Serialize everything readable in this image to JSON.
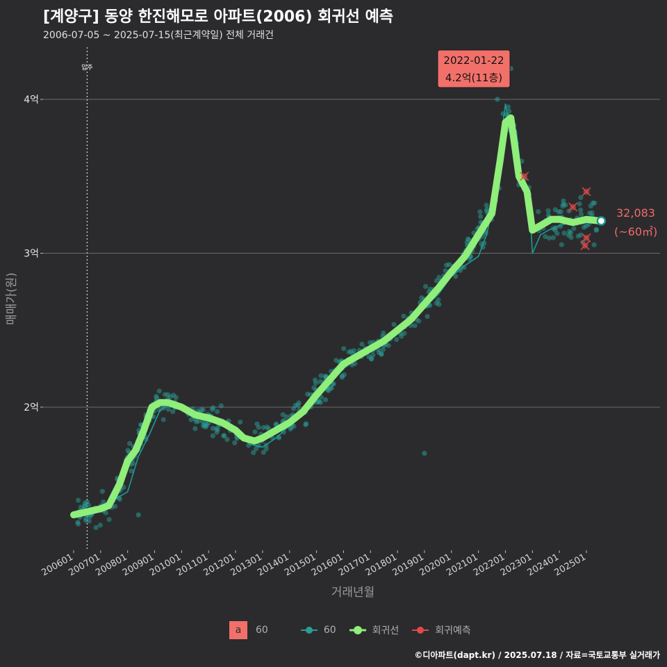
{
  "title": "[계양구] 동양 한진해모로 아파트(2006) 회귀선 예측",
  "subtitle": "2006-07-05 ~ 2025-07-15(최근계약일) 전체 거래건",
  "caption": "©디아파트(dapt.kr) / 2025.07.18 / 자료=국토교통부 실거래가",
  "colors": {
    "background": "#2b2b2d",
    "grid": "#6b6b6b",
    "scatter": "#2a9d96",
    "trend": "#1f9a92",
    "regression": "#90ee7a",
    "prediction": "#e04a4a",
    "label_bg": "#f2706a",
    "end_label": "#f26a6a"
  },
  "legend": {
    "area_key": "a",
    "area_label": "60",
    "scatter_label": "60",
    "regression_label": "회귀선",
    "prediction_label": "회귀예측"
  },
  "chart_data": {
    "type": "scatter",
    "xlabel": "거래년월",
    "ylabel": "매매가(원)",
    "x_range": [
      2005.8,
      2026.5
    ],
    "y_range": [
      1.1,
      4.3
    ],
    "y_unit": "억",
    "x_ticks": [
      "200601",
      "200701",
      "200801",
      "200901",
      "201001",
      "201101",
      "201201",
      "201301",
      "201401",
      "201501",
      "201601",
      "201701",
      "201801",
      "201901",
      "202001",
      "202101",
      "202201",
      "202301",
      "202401",
      "202501"
    ],
    "y_ticks": [
      {
        "value": 2,
        "label": "2억"
      },
      {
        "value": 3,
        "label": "3억"
      },
      {
        "value": 4,
        "label": "4억"
      }
    ],
    "move_in": {
      "x": 2006.5,
      "label": "입주"
    },
    "annotation_peak": {
      "x": 2022.06,
      "y": 4.2,
      "date": "2022-01-22",
      "label": "4.2억(11층)"
    },
    "end_point": {
      "x": 2025.55,
      "y": 3.21,
      "value_label": "32,083",
      "area_label": "(~60㎡)"
    },
    "regression_series": {
      "name": "회귀선",
      "x": [
        2006.0,
        2006.5,
        2007.0,
        2007.3,
        2007.7,
        2008.0,
        2008.3,
        2008.6,
        2008.9,
        2009.2,
        2009.5,
        2010.0,
        2010.5,
        2011.0,
        2011.5,
        2012.0,
        2012.3,
        2012.7,
        2013.0,
        2013.5,
        2014.0,
        2014.5,
        2015.0,
        2015.5,
        2016.0,
        2016.5,
        2017.0,
        2017.5,
        2018.0,
        2018.5,
        2019.0,
        2019.5,
        2020.0,
        2020.5,
        2021.0,
        2021.5,
        2021.8,
        2022.0,
        2022.2,
        2022.5,
        2022.8,
        2023.0,
        2023.3,
        2023.7,
        2024.0,
        2024.5,
        2025.0,
        2025.5
      ],
      "y": [
        1.3,
        1.32,
        1.34,
        1.36,
        1.5,
        1.65,
        1.72,
        1.85,
        2.0,
        2.03,
        2.03,
        2.0,
        1.95,
        1.93,
        1.9,
        1.85,
        1.8,
        1.78,
        1.8,
        1.85,
        1.9,
        1.97,
        2.08,
        2.18,
        2.28,
        2.33,
        2.38,
        2.43,
        2.5,
        2.57,
        2.67,
        2.77,
        2.88,
        2.98,
        3.12,
        3.26,
        3.6,
        3.85,
        3.88,
        3.5,
        3.4,
        3.15,
        3.18,
        3.22,
        3.22,
        3.2,
        3.22,
        3.21
      ]
    },
    "trend_series": {
      "name": "60",
      "x": [
        2006.0,
        2006.5,
        2007.0,
        2007.5,
        2008.0,
        2008.4,
        2008.8,
        2009.2,
        2009.6,
        2010.0,
        2010.5,
        2011.0,
        2011.5,
        2012.0,
        2012.5,
        2013.0,
        2013.5,
        2014.0,
        2014.5,
        2015.0,
        2015.5,
        2016.0,
        2016.5,
        2017.0,
        2017.5,
        2018.0,
        2018.5,
        2019.0,
        2019.5,
        2020.0,
        2020.5,
        2021.0,
        2021.3,
        2021.6,
        2021.8,
        2022.0,
        2022.2,
        2022.4,
        2022.6,
        2022.9,
        2023.0,
        2023.3,
        2023.6,
        2024.0,
        2024.4,
        2024.8,
        2025.2,
        2025.5
      ],
      "y": [
        1.3,
        1.3,
        1.36,
        1.4,
        1.45,
        1.68,
        1.82,
        1.98,
        2.02,
        2.0,
        1.95,
        1.91,
        1.92,
        1.87,
        1.76,
        1.74,
        1.8,
        1.88,
        1.95,
        2.08,
        2.18,
        2.25,
        2.32,
        2.37,
        2.44,
        2.52,
        2.57,
        2.65,
        2.73,
        2.85,
        2.92,
        2.98,
        3.12,
        3.35,
        3.7,
        3.97,
        3.75,
        3.8,
        3.5,
        3.3,
        3.0,
        3.12,
        3.15,
        3.18,
        3.2,
        3.19,
        3.21,
        3.2
      ]
    },
    "prediction_points": [
      {
        "x": 2022.7,
        "y": 3.5
      },
      {
        "x": 2024.5,
        "y": 3.3
      },
      {
        "x": 2025.0,
        "y": 3.4
      },
      {
        "x": 2025.0,
        "y": 3.1
      },
      {
        "x": 2024.95,
        "y": 3.05
      }
    ],
    "scatter_note": "Individual transactions (~60㎡) clustered around the regression line"
  }
}
